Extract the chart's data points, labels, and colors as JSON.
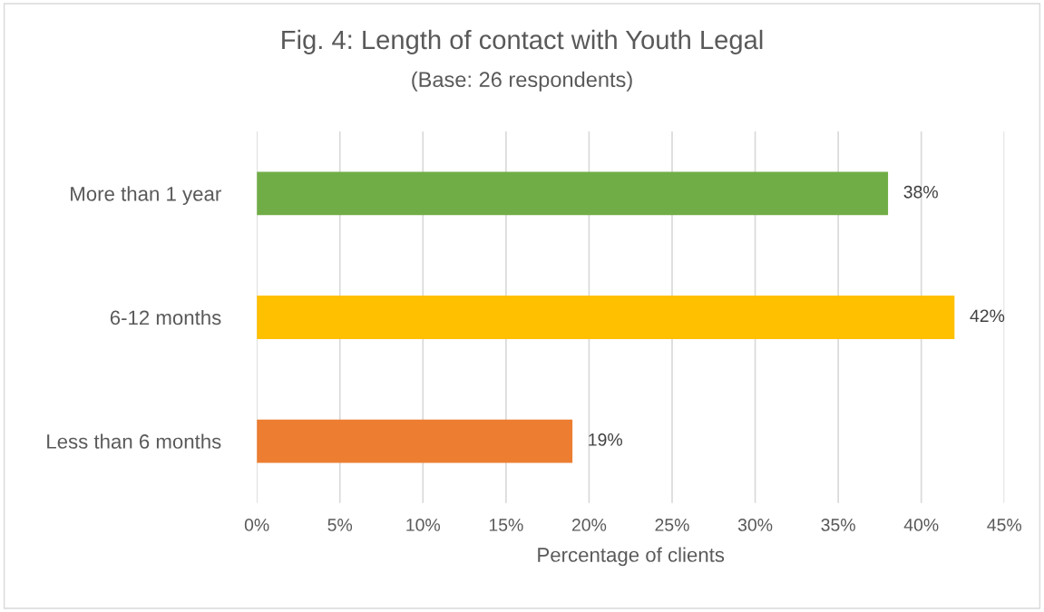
{
  "chart_data": {
    "type": "bar",
    "orientation": "horizontal",
    "title": "Fig. 4: Length of contact with Youth Legal",
    "subtitle": "(Base: 26 respondents)",
    "xlabel": "Percentage of clients",
    "categories": [
      "More than 1 year",
      "6-12 months",
      "Less than 6 months"
    ],
    "values": [
      38,
      42,
      19
    ],
    "colors": [
      "#70ad47",
      "#ffc000",
      "#ed7d31"
    ],
    "value_labels": [
      "38%",
      "42%",
      "19%"
    ],
    "xlim": [
      0,
      45
    ],
    "xticks": [
      {
        "value": 0,
        "label": "0%"
      },
      {
        "value": 5,
        "label": "5%"
      },
      {
        "value": 10,
        "label": "10%"
      },
      {
        "value": 15,
        "label": "15%"
      },
      {
        "value": 20,
        "label": "20%"
      },
      {
        "value": 25,
        "label": "25%"
      },
      {
        "value": 30,
        "label": "30%"
      },
      {
        "value": 35,
        "label": "35%"
      },
      {
        "value": 40,
        "label": "40%"
      },
      {
        "value": 45,
        "label": "45%"
      }
    ],
    "grid": "x",
    "legend": false
  }
}
